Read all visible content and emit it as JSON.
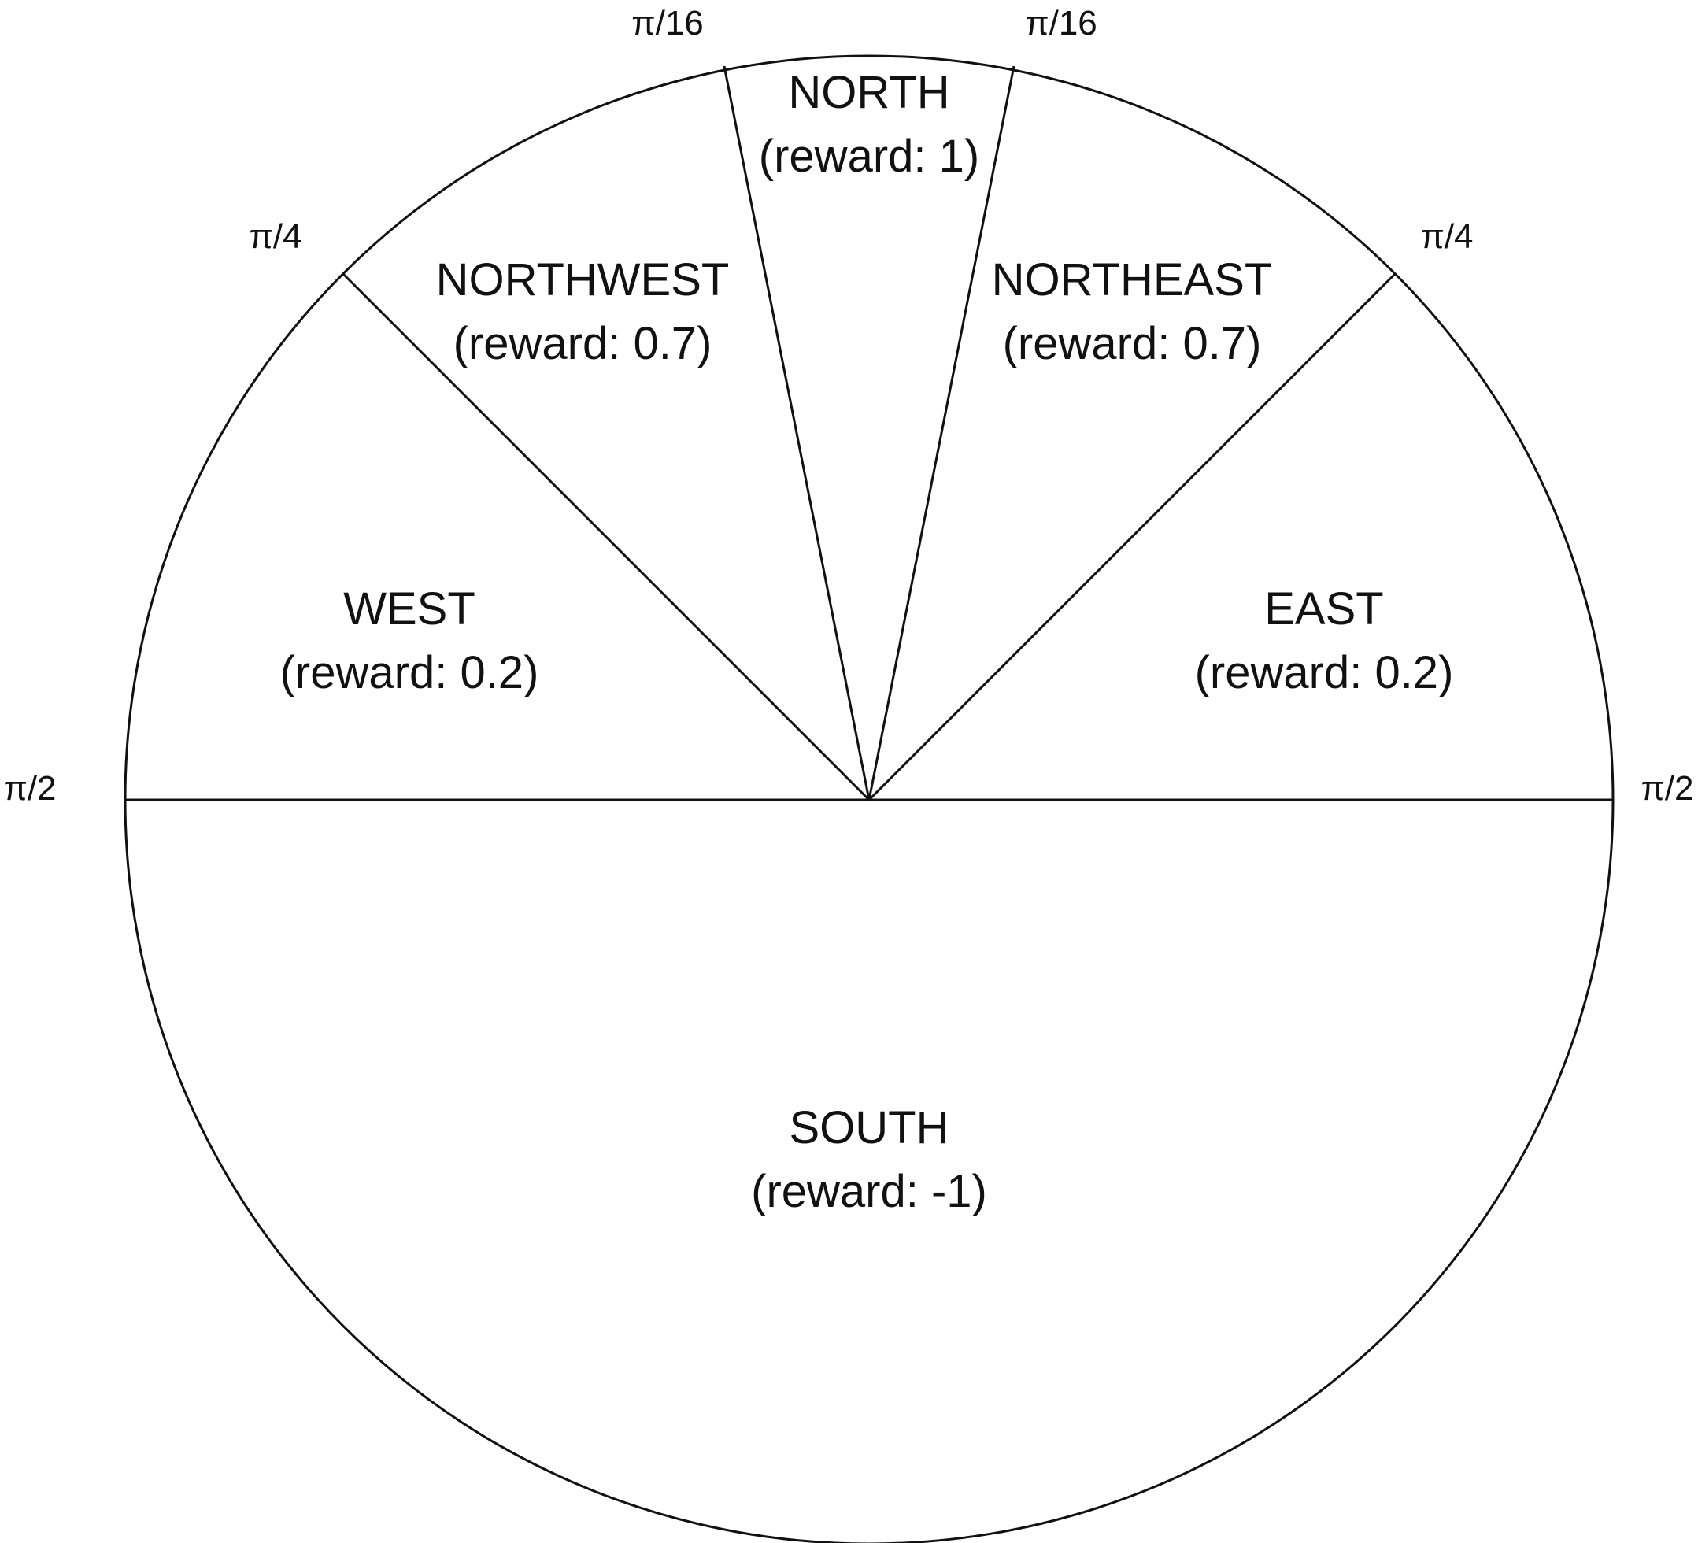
{
  "diagram": {
    "stroke_color": "#111111",
    "background_color": "#ffffff",
    "regions": [
      {
        "name": "NORTH",
        "reward": "(reward: 1)"
      },
      {
        "name": "NORTHWEST",
        "reward": "(reward: 0.7)"
      },
      {
        "name": "NORTHEAST",
        "reward": "(reward: 0.7)"
      },
      {
        "name": "WEST",
        "reward": "(reward: 0.2)"
      },
      {
        "name": "EAST",
        "reward": "(reward: 0.2)"
      },
      {
        "name": "SOUTH",
        "reward": "(reward: -1)"
      }
    ],
    "angle_labels": {
      "north_left": "π/16",
      "north_right": "π/16",
      "northwest": "π/4",
      "northeast": "π/4",
      "west": "π/2",
      "east": "π/2"
    }
  }
}
